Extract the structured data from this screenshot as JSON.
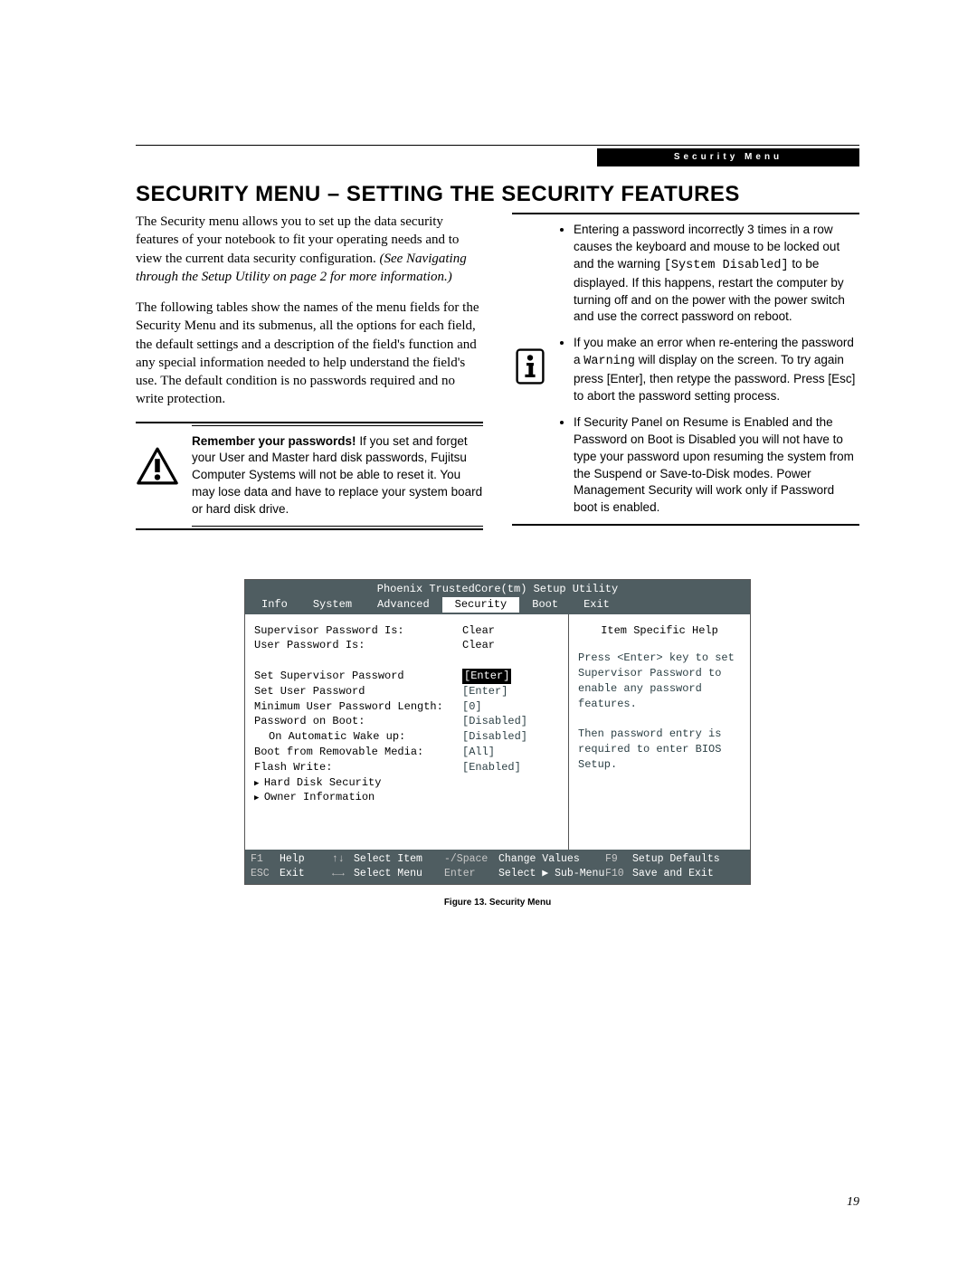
{
  "header": {
    "breadcrumb": "Security Menu"
  },
  "title": "SECURITY MENU – SETTING THE SECURITY FEATURES",
  "left": {
    "p1a": "The Security menu allows you to set up the data security features of your notebook to fit your operating needs and to view the current data security configuration. ",
    "p1b": "(See Navigating through the Setup Utility on page 2 for more information.)",
    "p2": "The following tables show the names of the menu fields for the Security Menu and its submenus, all the options for each field, the default settings and a description of the field's function and any special information needed to help understand the field's use. The default condition is no passwords required and no write protection.",
    "warn_bold": "Remember your passwords!",
    "warn_rest": " If you set and forget your User and Master hard disk passwords, Fujitsu Computer Systems will not be able to reset it. You may lose data and have to replace your system board or hard disk drive."
  },
  "right": {
    "b1a": "Entering a password incorrectly 3 times in a row causes the keyboard and mouse to be locked out and the warning ",
    "b1code": "[System Disabled]",
    "b1b": " to be displayed. If this happens, restart the computer by turning off and on the power with the power switch and use the correct password on reboot.",
    "b2a": "If you make an error when re-entering the password a ",
    "b2code": "Warning",
    "b2b": " will display on the screen. To try again press [Enter], then retype the password. Press [Esc] to abort the password setting process.",
    "b3": "If Security Panel on Resume is Enabled and the Password on Boot is Disabled you will not have to type your password upon resuming the system from the Suspend or Save-to-Disk modes. Power Management Security will work only if Password boot is enabled."
  },
  "bios": {
    "title": "Phoenix TrustedCore(tm) Setup Utility",
    "menu": [
      "Info",
      "System",
      "Advanced",
      "Security",
      "Boot",
      "Exit"
    ],
    "active_menu": "Security",
    "rows": [
      {
        "label": "Supervisor Password Is:",
        "value": "Clear",
        "black": true
      },
      {
        "label": "User Password Is:",
        "value": "Clear",
        "black": true
      },
      {
        "spacer": true
      },
      {
        "label": "Set Supervisor Password",
        "value": "[Enter]",
        "selected": true
      },
      {
        "label": "Set User Password",
        "value": "[Enter]"
      },
      {
        "label": "Minimum User Password Length:",
        "value": "[0]"
      },
      {
        "label": "Password on Boot:",
        "value": "[Disabled]"
      },
      {
        "label": "On Automatic Wake up:",
        "value": "[Disabled]",
        "indent": true
      },
      {
        "label": "Boot from Removable Media:",
        "value": "[All]"
      },
      {
        "label": "Flash Write:",
        "value": "[Enabled]"
      },
      {
        "sub": "Hard Disk Security"
      },
      {
        "sub": "Owner Information"
      }
    ],
    "help_title": "Item Specific Help",
    "help_body": "Press <Enter> key to set Supervisor Password to enable any password features.\n\nThen password entry is required to enter BIOS Setup.",
    "footer": {
      "r1": {
        "k1": "F1",
        "v1": "Help",
        "k2": "↑↓",
        "v2": "Select Item",
        "k3": "-/Space",
        "v3": "Change Values",
        "k4": "F9",
        "v4": "Setup Defaults"
      },
      "r2": {
        "k1": "ESC",
        "v1": "Exit",
        "k2": "←→",
        "v2": "Select Menu",
        "k3": "Enter",
        "v3": "Select ▶ Sub-Menu",
        "k4": "F10",
        "v4": "Save and Exit"
      }
    }
  },
  "figure_caption": "Figure 13.  Security Menu",
  "page_number": "19"
}
